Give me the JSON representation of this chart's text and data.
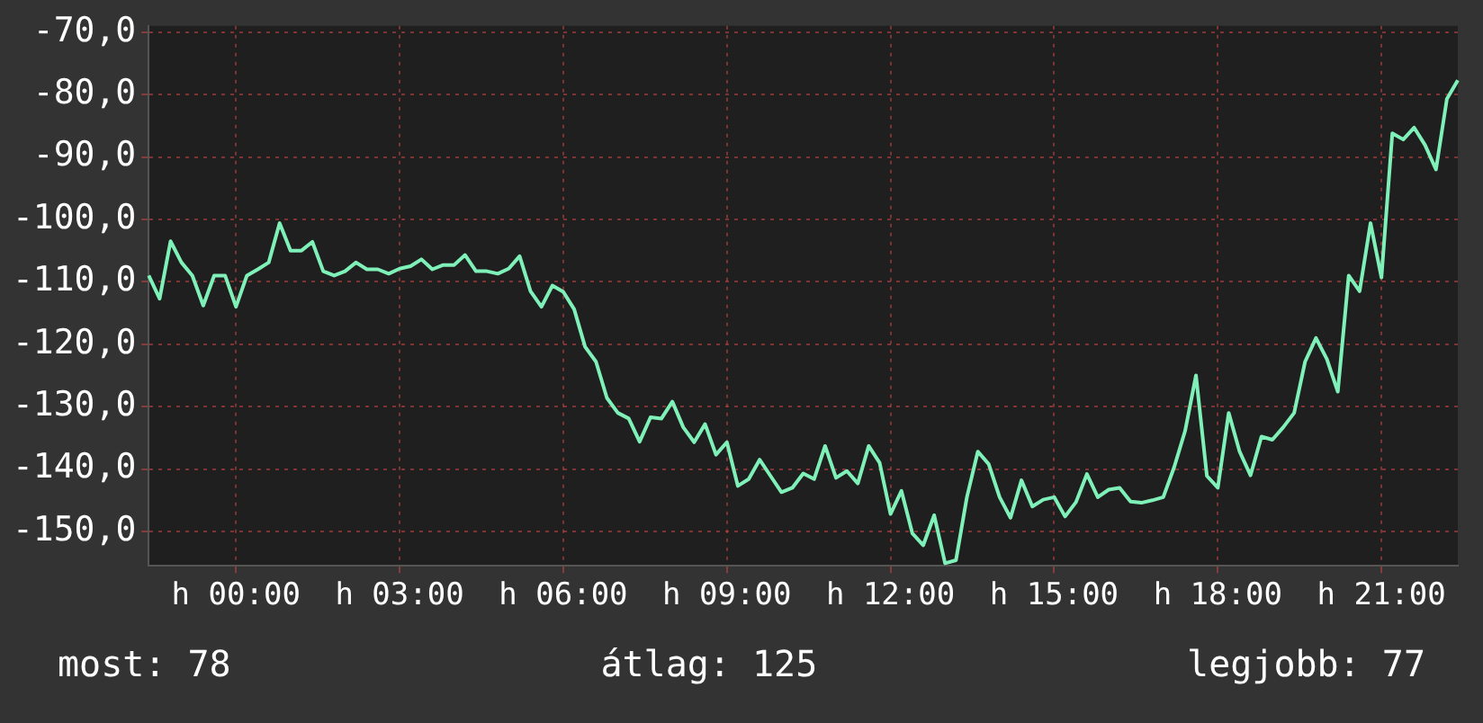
{
  "chart_data": {
    "type": "line",
    "marker": "none",
    "line_style": "solid",
    "grid": true,
    "color": "#7ff0b8",
    "categories": [
      null,
      null,
      null,
      null,
      null,
      null,
      null,
      null,
      "h 00:00",
      null,
      null,
      null,
      null,
      null,
      null,
      null,
      null,
      null,
      null,
      null,
      null,
      null,
      null,
      "h 03:00",
      null,
      null,
      null,
      null,
      null,
      null,
      null,
      null,
      null,
      null,
      null,
      null,
      null,
      null,
      "h 06:00",
      null,
      null,
      null,
      null,
      null,
      null,
      null,
      null,
      null,
      null,
      null,
      null,
      null,
      null,
      "h 09:00",
      null,
      null,
      null,
      null,
      null,
      null,
      null,
      null,
      null,
      null,
      null,
      null,
      null,
      null,
      "h 12:00",
      null,
      null,
      null,
      null,
      null,
      null,
      null,
      null,
      null,
      null,
      null,
      null,
      null,
      null,
      "h 15:00",
      null,
      null,
      null,
      null,
      null,
      null,
      null,
      null,
      null,
      null,
      null,
      null,
      null,
      null,
      "h 18:00",
      null,
      null,
      null,
      null,
      null,
      null,
      null,
      null,
      null,
      null,
      null,
      null,
      null,
      null,
      "h 21:00",
      null,
      null,
      null,
      null,
      null,
      null,
      null
    ],
    "values": [
      -109.0,
      -112.7,
      -103.5,
      -106.9,
      -109.0,
      -113.8,
      -109.0,
      -109.0,
      -114.0,
      -109.0,
      -108.0,
      -106.9,
      -100.6,
      -105.0,
      -105.0,
      -103.6,
      -108.3,
      -109.0,
      -108.3,
      -106.9,
      -108.0,
      -108.0,
      -108.7,
      -107.9,
      -107.5,
      -106.4,
      -108.0,
      -107.3,
      -107.3,
      -105.7,
      -108.3,
      -108.3,
      -108.7,
      -107.9,
      -105.9,
      -111.5,
      -114.0,
      -110.6,
      -111.6,
      -114.4,
      -120.4,
      -122.8,
      -128.6,
      -131.0,
      -131.9,
      -135.6,
      -131.7,
      -131.9,
      -129.2,
      -133.3,
      -135.7,
      -132.8,
      -137.7,
      -135.7,
      -142.7,
      -141.6,
      -138.5,
      -141.1,
      -143.7,
      -143.0,
      -140.7,
      -141.6,
      -136.3,
      -141.4,
      -140.3,
      -142.3,
      -136.3,
      -139.0,
      -147.2,
      -143.5,
      -150.3,
      -152.2,
      -147.4,
      -155.1,
      -154.6,
      -144.5,
      -137.2,
      -139.2,
      -144.5,
      -147.8,
      -141.8,
      -146.0,
      -144.9,
      -144.5,
      -147.6,
      -145.3,
      -140.8,
      -144.5,
      -143.3,
      -143.0,
      -145.2,
      -145.4,
      -145.0,
      -144.5,
      -139.7,
      -133.9,
      -125.0,
      -141.1,
      -143.0,
      -131.0,
      -137.2,
      -141.0,
      -134.8,
      -135.3,
      -133.3,
      -131.0,
      -122.8,
      -119.0,
      -122.4,
      -127.6,
      -109.0,
      -111.5,
      -100.6,
      -109.3,
      -86.2,
      -87.2,
      -85.3,
      -88.1,
      -92.0,
      -80.7,
      -77.7
    ],
    "ylim": [
      -155.5,
      -69
    ],
    "yticks": [
      {
        "value": -150,
        "label": "-150,0"
      },
      {
        "value": -140,
        "label": "-140,0"
      },
      {
        "value": -130,
        "label": "-130,0"
      },
      {
        "value": -120,
        "label": "-120,0"
      },
      {
        "value": -110,
        "label": "-110,0"
      },
      {
        "value": -100,
        "label": "-100,0"
      },
      {
        "value": -90,
        "label": "-90,0"
      },
      {
        "value": -80,
        "label": "-80,0"
      },
      {
        "value": -70,
        "label": "-70,0"
      }
    ],
    "annotations": [
      "most: 78",
      "átlag: 125",
      "legjobb: 77"
    ]
  }
}
